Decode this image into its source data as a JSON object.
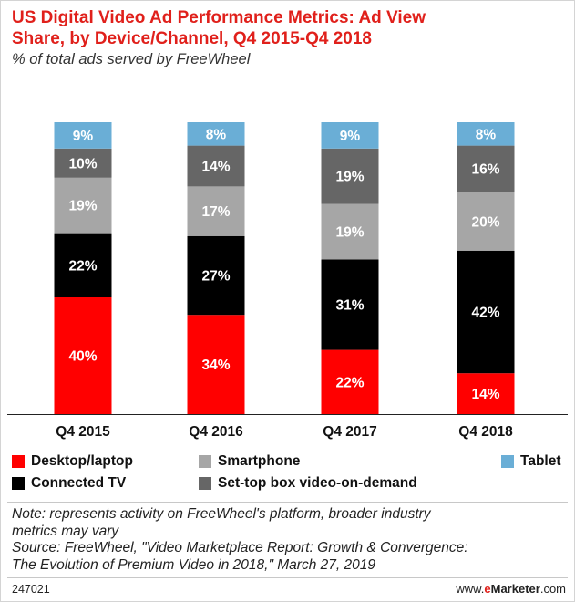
{
  "title_line1": "US Digital Video Ad Performance Metrics: Ad View",
  "title_line2": "Share, by Device/Channel, Q4 2015-Q4 2018",
  "subtitle": "% of total ads served by FreeWheel",
  "chart_data": {
    "type": "bar",
    "stacked": true,
    "unit": "%",
    "categories": [
      "Q4 2015",
      "Q4 2016",
      "Q4 2017",
      "Q4 2018"
    ],
    "series": [
      {
        "name": "Desktop/laptop",
        "color": "#ff0000",
        "values": [
          40,
          34,
          22,
          14
        ]
      },
      {
        "name": "Connected TV",
        "color": "#000000",
        "values": [
          22,
          27,
          31,
          42
        ]
      },
      {
        "name": "Smartphone",
        "color": "#a6a6a6",
        "values": [
          19,
          17,
          19,
          20
        ]
      },
      {
        "name": "Set-top box video-on-demand",
        "color": "#666666",
        "values": [
          10,
          14,
          19,
          16
        ]
      },
      {
        "name": "Tablet",
        "color": "#6aaed6",
        "values": [
          9,
          8,
          9,
          8
        ]
      }
    ]
  },
  "legend": [
    {
      "label": "Desktop/laptop",
      "color": "#ff0000"
    },
    {
      "label": "Smartphone",
      "color": "#a6a6a6"
    },
    {
      "label": "Tablet",
      "color": "#6aaed6"
    },
    {
      "label": "Connected TV",
      "color": "#000000"
    },
    {
      "label": "Set-top box video-on-demand",
      "color": "#666666"
    }
  ],
  "note_line1": "Note: represents activity on FreeWheel's platform, broader industry",
  "note_line2": "metrics may vary",
  "source_line1": "Source: FreeWheel, \"Video Marketplace Report: Growth & Convergence:",
  "source_line2": "The Evolution of Premium Video in 2018,\" March 27, 2019",
  "footer_id": "247021",
  "brand": {
    "prefix": "www.",
    "e": "e",
    "marketer": "Marketer",
    "suffix": ".com"
  }
}
